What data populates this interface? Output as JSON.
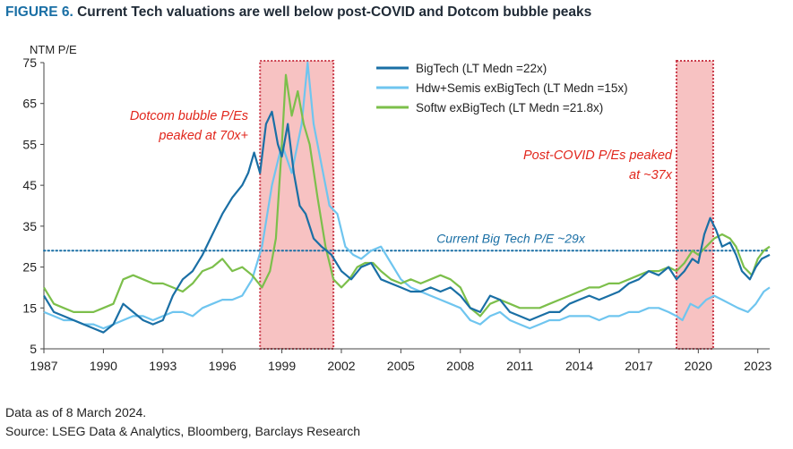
{
  "figure": {
    "number": "FIGURE 6.",
    "title": "Current Tech valuations are well below post-COVID and Dotcom bubble peaks"
  },
  "footer": {
    "note": "Data as of 8 March 2024.",
    "source": "Source: LSEG Data & Analytics, Bloomberg, Barclays Research"
  },
  "chart_data": {
    "type": "line",
    "ylabel": "NTM P/E",
    "xlabel": "",
    "ylim": [
      5,
      75
    ],
    "xlim": [
      1987.0,
      2023.6
    ],
    "yticks": [
      5,
      15,
      25,
      35,
      45,
      55,
      65,
      75
    ],
    "xticks": [
      "1987",
      "1990",
      "1993",
      "1996",
      "1999",
      "2002",
      "2005",
      "2008",
      "2011",
      "2014",
      "2017",
      "2020",
      "2023"
    ],
    "xtick_values": [
      1987,
      1990,
      1993,
      1996,
      1999,
      2002,
      2005,
      2008,
      2011,
      2014,
      2017,
      2020,
      2023
    ],
    "grid": false,
    "legend_position": "top-center",
    "series": [
      {
        "name": "BigTech (LT Medn =22x)",
        "color": "#1a6fa5",
        "points": [
          [
            1987.0,
            18
          ],
          [
            1987.5,
            14
          ],
          [
            1988.0,
            13
          ],
          [
            1988.5,
            12
          ],
          [
            1989.0,
            11
          ],
          [
            1989.5,
            10
          ],
          [
            1990.0,
            9
          ],
          [
            1990.5,
            11
          ],
          [
            1991.0,
            16
          ],
          [
            1991.5,
            14
          ],
          [
            1992.0,
            12
          ],
          [
            1992.5,
            11
          ],
          [
            1993.0,
            12
          ],
          [
            1993.5,
            18
          ],
          [
            1994.0,
            22
          ],
          [
            1994.5,
            24
          ],
          [
            1995.0,
            28
          ],
          [
            1995.5,
            33
          ],
          [
            1996.0,
            38
          ],
          [
            1996.5,
            42
          ],
          [
            1997.0,
            45
          ],
          [
            1997.3,
            48
          ],
          [
            1997.6,
            53
          ],
          [
            1997.9,
            48
          ],
          [
            1998.2,
            60
          ],
          [
            1998.5,
            63
          ],
          [
            1998.8,
            55
          ],
          [
            1999.0,
            52
          ],
          [
            1999.3,
            60
          ],
          [
            1999.6,
            48
          ],
          [
            1999.9,
            40
          ],
          [
            2000.2,
            38
          ],
          [
            2000.6,
            32
          ],
          [
            2001.0,
            30
          ],
          [
            2001.5,
            28
          ],
          [
            2002.0,
            24
          ],
          [
            2002.5,
            22
          ],
          [
            2003.0,
            25
          ],
          [
            2003.5,
            26
          ],
          [
            2004.0,
            22
          ],
          [
            2004.5,
            21
          ],
          [
            2005.0,
            20
          ],
          [
            2005.5,
            19
          ],
          [
            2006.0,
            19
          ],
          [
            2006.5,
            20
          ],
          [
            2007.0,
            19
          ],
          [
            2007.5,
            20
          ],
          [
            2008.0,
            18
          ],
          [
            2008.5,
            15
          ],
          [
            2009.0,
            14
          ],
          [
            2009.5,
            18
          ],
          [
            2010.0,
            17
          ],
          [
            2010.5,
            14
          ],
          [
            2011.0,
            13
          ],
          [
            2011.5,
            12
          ],
          [
            2012.0,
            13
          ],
          [
            2012.5,
            14
          ],
          [
            2013.0,
            14
          ],
          [
            2013.5,
            16
          ],
          [
            2014.0,
            17
          ],
          [
            2014.5,
            18
          ],
          [
            2015.0,
            17
          ],
          [
            2015.5,
            18
          ],
          [
            2016.0,
            19
          ],
          [
            2016.5,
            21
          ],
          [
            2017.0,
            22
          ],
          [
            2017.5,
            24
          ],
          [
            2018.0,
            23
          ],
          [
            2018.5,
            25
          ],
          [
            2018.9,
            22
          ],
          [
            2019.3,
            24
          ],
          [
            2019.7,
            27
          ],
          [
            2020.0,
            26
          ],
          [
            2020.3,
            33
          ],
          [
            2020.6,
            37
          ],
          [
            2020.9,
            34
          ],
          [
            2021.2,
            30
          ],
          [
            2021.6,
            31
          ],
          [
            2021.9,
            28
          ],
          [
            2022.2,
            24
          ],
          [
            2022.6,
            22
          ],
          [
            2022.9,
            25
          ],
          [
            2023.2,
            27
          ],
          [
            2023.6,
            28
          ]
        ]
      },
      {
        "name": "Hdw+Semis exBigTech (LT Medn =15x)",
        "color": "#6fc5ef",
        "points": [
          [
            1987.0,
            14
          ],
          [
            1987.5,
            13
          ],
          [
            1988.0,
            12
          ],
          [
            1988.5,
            12
          ],
          [
            1989.0,
            11
          ],
          [
            1989.5,
            11
          ],
          [
            1990.0,
            10
          ],
          [
            1990.5,
            11
          ],
          [
            1991.0,
            12
          ],
          [
            1991.5,
            13
          ],
          [
            1992.0,
            13
          ],
          [
            1992.5,
            12
          ],
          [
            1993.0,
            13
          ],
          [
            1993.5,
            14
          ],
          [
            1994.0,
            14
          ],
          [
            1994.5,
            13
          ],
          [
            1995.0,
            15
          ],
          [
            1995.5,
            16
          ],
          [
            1996.0,
            17
          ],
          [
            1996.5,
            17
          ],
          [
            1997.0,
            18
          ],
          [
            1997.5,
            22
          ],
          [
            1998.0,
            30
          ],
          [
            1998.5,
            45
          ],
          [
            1999.0,
            55
          ],
          [
            1999.5,
            48
          ],
          [
            2000.0,
            60
          ],
          [
            2000.3,
            75
          ],
          [
            2000.6,
            60
          ],
          [
            2001.0,
            50
          ],
          [
            2001.4,
            40
          ],
          [
            2001.8,
            38
          ],
          [
            2002.2,
            30
          ],
          [
            2002.6,
            28
          ],
          [
            2003.0,
            27
          ],
          [
            2003.5,
            29
          ],
          [
            2004.0,
            30
          ],
          [
            2004.5,
            26
          ],
          [
            2005.0,
            22
          ],
          [
            2005.5,
            20
          ],
          [
            2006.0,
            19
          ],
          [
            2006.5,
            18
          ],
          [
            2007.0,
            17
          ],
          [
            2007.5,
            16
          ],
          [
            2008.0,
            15
          ],
          [
            2008.5,
            12
          ],
          [
            2009.0,
            11
          ],
          [
            2009.5,
            13
          ],
          [
            2010.0,
            14
          ],
          [
            2010.5,
            12
          ],
          [
            2011.0,
            11
          ],
          [
            2011.5,
            10
          ],
          [
            2012.0,
            11
          ],
          [
            2012.5,
            12
          ],
          [
            2013.0,
            12
          ],
          [
            2013.5,
            13
          ],
          [
            2014.0,
            13
          ],
          [
            2014.5,
            13
          ],
          [
            2015.0,
            12
          ],
          [
            2015.5,
            13
          ],
          [
            2016.0,
            13
          ],
          [
            2016.5,
            14
          ],
          [
            2017.0,
            14
          ],
          [
            2017.5,
            15
          ],
          [
            2018.0,
            15
          ],
          [
            2018.5,
            14
          ],
          [
            2018.9,
            13
          ],
          [
            2019.2,
            12
          ],
          [
            2019.6,
            16
          ],
          [
            2020.0,
            15
          ],
          [
            2020.4,
            17
          ],
          [
            2020.8,
            18
          ],
          [
            2021.2,
            17
          ],
          [
            2021.6,
            16
          ],
          [
            2022.0,
            15
          ],
          [
            2022.5,
            14
          ],
          [
            2022.9,
            16
          ],
          [
            2023.3,
            19
          ],
          [
            2023.6,
            20
          ]
        ]
      },
      {
        "name": "Softw exBigTech (LT Medn =21.8x)",
        "color": "#7cbf4b",
        "points": [
          [
            1987.0,
            20
          ],
          [
            1987.5,
            16
          ],
          [
            1988.0,
            15
          ],
          [
            1988.5,
            14
          ],
          [
            1989.0,
            14
          ],
          [
            1989.5,
            14
          ],
          [
            1990.0,
            15
          ],
          [
            1990.5,
            16
          ],
          [
            1991.0,
            22
          ],
          [
            1991.5,
            23
          ],
          [
            1992.0,
            22
          ],
          [
            1992.5,
            21
          ],
          [
            1993.0,
            21
          ],
          [
            1993.5,
            20
          ],
          [
            1994.0,
            19
          ],
          [
            1994.5,
            21
          ],
          [
            1995.0,
            24
          ],
          [
            1995.5,
            25
          ],
          [
            1996.0,
            27
          ],
          [
            1996.5,
            24
          ],
          [
            1997.0,
            25
          ],
          [
            1997.5,
            23
          ],
          [
            1998.0,
            20
          ],
          [
            1998.4,
            24
          ],
          [
            1998.7,
            32
          ],
          [
            1999.0,
            55
          ],
          [
            1999.2,
            72
          ],
          [
            1999.5,
            62
          ],
          [
            1999.8,
            68
          ],
          [
            2000.1,
            60
          ],
          [
            2000.4,
            55
          ],
          [
            2000.8,
            42
          ],
          [
            2001.2,
            30
          ],
          [
            2001.6,
            22
          ],
          [
            2002.0,
            20
          ],
          [
            2002.4,
            22
          ],
          [
            2002.8,
            25
          ],
          [
            2003.2,
            26
          ],
          [
            2003.6,
            26
          ],
          [
            2004.0,
            24
          ],
          [
            2004.5,
            22
          ],
          [
            2005.0,
            21
          ],
          [
            2005.5,
            22
          ],
          [
            2006.0,
            21
          ],
          [
            2006.5,
            22
          ],
          [
            2007.0,
            23
          ],
          [
            2007.5,
            22
          ],
          [
            2008.0,
            20
          ],
          [
            2008.5,
            15
          ],
          [
            2009.0,
            13
          ],
          [
            2009.5,
            16
          ],
          [
            2010.0,
            17
          ],
          [
            2010.5,
            16
          ],
          [
            2011.0,
            15
          ],
          [
            2011.5,
            15
          ],
          [
            2012.0,
            15
          ],
          [
            2012.5,
            16
          ],
          [
            2013.0,
            17
          ],
          [
            2013.5,
            18
          ],
          [
            2014.0,
            19
          ],
          [
            2014.5,
            20
          ],
          [
            2015.0,
            20
          ],
          [
            2015.5,
            21
          ],
          [
            2016.0,
            21
          ],
          [
            2016.5,
            22
          ],
          [
            2017.0,
            23
          ],
          [
            2017.5,
            24
          ],
          [
            2018.0,
            24
          ],
          [
            2018.5,
            25
          ],
          [
            2018.9,
            24
          ],
          [
            2019.3,
            26
          ],
          [
            2019.7,
            29
          ],
          [
            2020.0,
            28
          ],
          [
            2020.4,
            30
          ],
          [
            2020.8,
            32
          ],
          [
            2021.2,
            33
          ],
          [
            2021.6,
            32
          ],
          [
            2021.9,
            30
          ],
          [
            2022.3,
            25
          ],
          [
            2022.7,
            23
          ],
          [
            2023.0,
            27
          ],
          [
            2023.3,
            29
          ],
          [
            2023.6,
            30
          ]
        ]
      }
    ],
    "reference_line": {
      "value": 29,
      "label": "Current Big Tech P/E ~29x",
      "color": "#1a6fa5"
    },
    "shaded_regions": [
      {
        "x_start": 1997.9,
        "x_end": 2001.6,
        "fill": "#f6b8b8",
        "border": "#c0182a"
      },
      {
        "x_start": 2018.9,
        "x_end": 2020.75,
        "fill": "#f6b8b8",
        "border": "#c0182a"
      }
    ],
    "annotations": [
      {
        "lines": [
          "Dotcom bubble P/Es",
          "peaked at 70x+"
        ],
        "color": "#e1261c"
      },
      {
        "lines": [
          "Post-COVID P/Es peaked",
          "at ~37x"
        ],
        "color": "#e1261c"
      }
    ]
  }
}
